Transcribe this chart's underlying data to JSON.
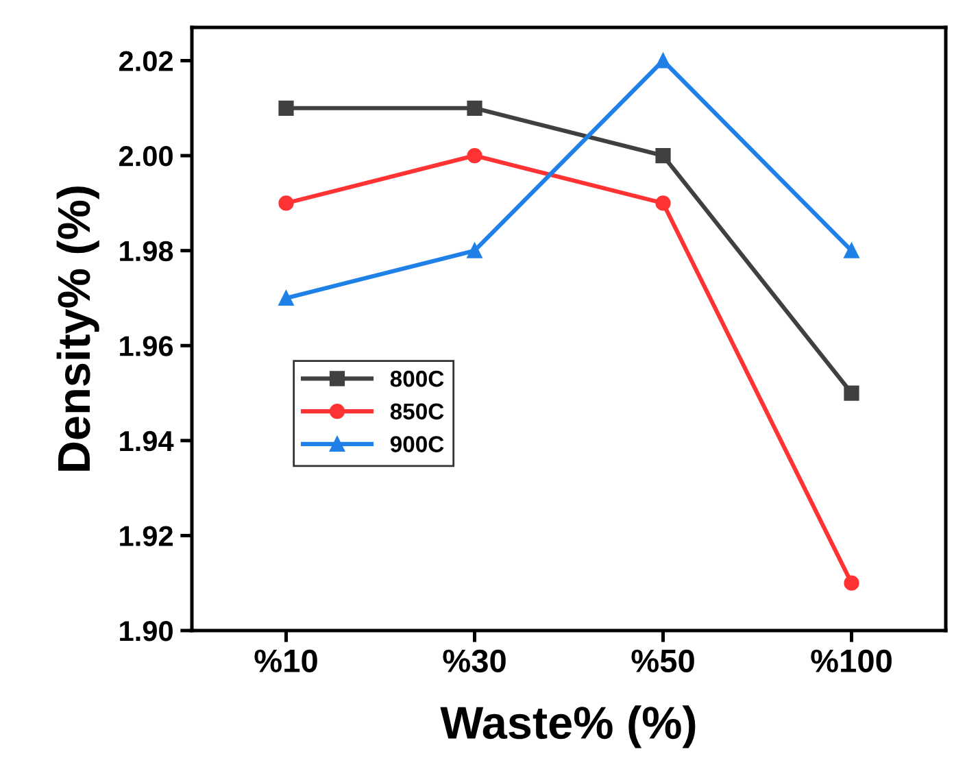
{
  "chart_data": {
    "type": "line",
    "xlabel": "Waste% (%)",
    "ylabel": "Density% (%)",
    "categories": [
      "%10",
      "%30",
      "%50",
      "%100"
    ],
    "series": [
      {
        "name": "800C",
        "color": "#404040",
        "values": [
          2.01,
          2.01,
          2.0,
          1.95
        ],
        "marker": "square"
      },
      {
        "name": "850C",
        "color": "#ff3333",
        "values": [
          1.99,
          2.0,
          1.99,
          1.91
        ],
        "marker": "circle"
      },
      {
        "name": "900C",
        "color": "#1f80e8",
        "values": [
          1.97,
          1.98,
          2.02,
          1.98
        ],
        "marker": "triangle"
      }
    ],
    "ylim": [
      1.9,
      2.027
    ],
    "yticks": [
      {
        "value": 1.9,
        "label": "1.90"
      },
      1.92,
      1.94,
      1.96,
      1.98,
      {
        "value": 2.0,
        "label": "2.00"
      },
      2.02
    ],
    "grid": false,
    "legend": "left",
    "line_style": "solid"
  }
}
